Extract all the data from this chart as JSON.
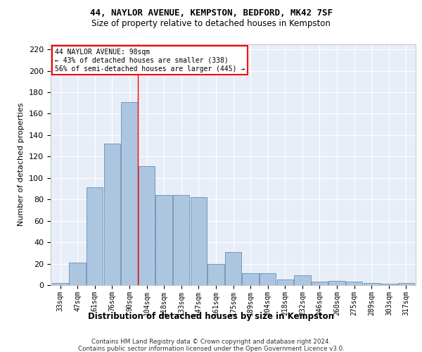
{
  "title1": "44, NAYLOR AVENUE, KEMPSTON, BEDFORD, MK42 7SF",
  "title2": "Size of property relative to detached houses in Kempston",
  "xlabel": "Distribution of detached houses by size in Kempston",
  "ylabel": "Number of detached properties",
  "categories": [
    "33sqm",
    "47sqm",
    "61sqm",
    "76sqm",
    "90sqm",
    "104sqm",
    "118sqm",
    "133sqm",
    "147sqm",
    "161sqm",
    "175sqm",
    "189sqm",
    "204sqm",
    "218sqm",
    "232sqm",
    "246sqm",
    "260sqm",
    "275sqm",
    "289sqm",
    "303sqm",
    "317sqm"
  ],
  "values": [
    2,
    21,
    91,
    132,
    171,
    111,
    84,
    84,
    82,
    20,
    31,
    11,
    11,
    5,
    9,
    3,
    4,
    3,
    2,
    1,
    2
  ],
  "bar_color": "#adc6e0",
  "bar_edge_color": "#5080b0",
  "vline_color": "red",
  "vline_x_index": 4,
  "annotation_text": "44 NAYLOR AVENUE: 98sqm\n← 43% of detached houses are smaller (338)\n56% of semi-detached houses are larger (445) →",
  "ylim": [
    0,
    225
  ],
  "yticks": [
    0,
    20,
    40,
    60,
    80,
    100,
    120,
    140,
    160,
    180,
    200,
    220
  ],
  "footer1": "Contains HM Land Registry data © Crown copyright and database right 2024.",
  "footer2": "Contains public sector information licensed under the Open Government Licence v3.0.",
  "bg_color": "#e8eef8",
  "grid_color": "white"
}
